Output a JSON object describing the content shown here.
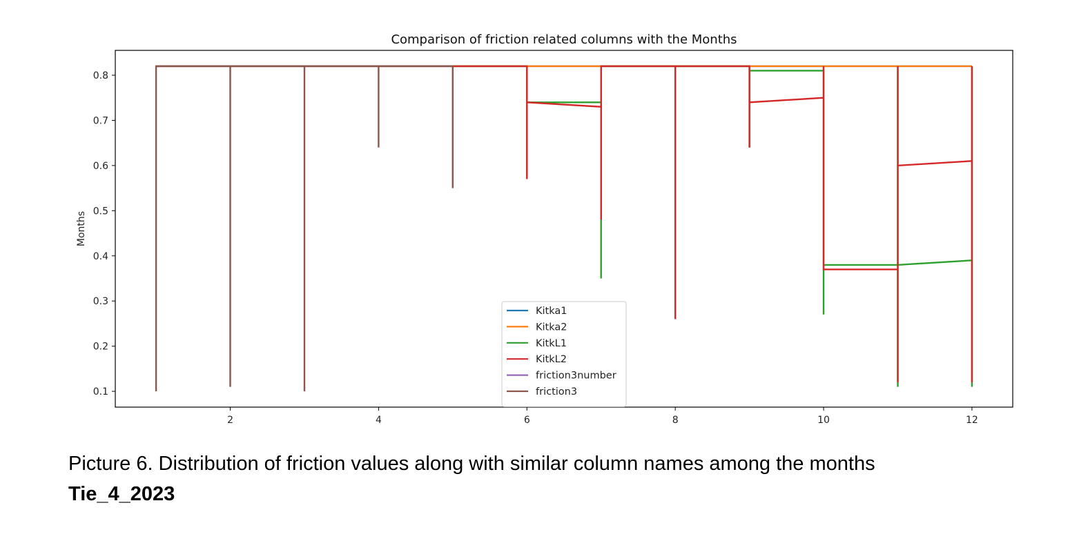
{
  "chart_data": {
    "type": "line",
    "title": "Comparison of friction related columns with the Months",
    "xlabel": "",
    "ylabel": "Months",
    "xlim": [
      0.45,
      12.55
    ],
    "ylim": [
      0.065,
      0.855
    ],
    "x_ticks": [
      2,
      4,
      6,
      8,
      10,
      12
    ],
    "y_ticks": [
      0.1,
      0.2,
      0.3,
      0.4,
      0.5,
      0.6,
      0.7,
      0.8
    ],
    "grid": false,
    "legend_position": "lower-center",
    "series": [
      {
        "name": "Kitka1",
        "color": "#1f77b4",
        "points": [
          [
            1,
            0.82
          ],
          [
            12,
            0.82
          ]
        ]
      },
      {
        "name": "Kitka2",
        "color": "#ff7f0e",
        "points": [
          [
            1,
            0.82
          ],
          [
            12,
            0.82
          ]
        ]
      },
      {
        "name": "KitkL1",
        "color": "#2ca02c",
        "points": [
          [
            5,
            0.82
          ],
          [
            6,
            0.82
          ],
          [
            6,
            0.57
          ],
          [
            6,
            0.74
          ],
          [
            7,
            0.74
          ],
          [
            7,
            0.35
          ],
          [
            7,
            0.82
          ],
          [
            8,
            0.82
          ],
          [
            8,
            0.26
          ],
          [
            8,
            0.82
          ],
          [
            9,
            0.82
          ],
          [
            9,
            0.64
          ],
          [
            9,
            0.81
          ],
          [
            10,
            0.81
          ],
          [
            10,
            0.27
          ],
          [
            10,
            0.82
          ],
          [
            10,
            0.38
          ],
          [
            11,
            0.38
          ],
          [
            11,
            0.11
          ],
          [
            11,
            0.82
          ],
          [
            11,
            0.38
          ],
          [
            12,
            0.39
          ],
          [
            12,
            0.11
          ],
          [
            12,
            0.82
          ]
        ]
      },
      {
        "name": "KitkL2",
        "color": "#d62728",
        "points": [
          [
            5,
            0.82
          ],
          [
            6,
            0.82
          ],
          [
            6,
            0.57
          ],
          [
            6,
            0.74
          ],
          [
            7,
            0.73
          ],
          [
            7,
            0.48
          ],
          [
            7,
            0.82
          ],
          [
            8,
            0.82
          ],
          [
            8,
            0.26
          ],
          [
            8,
            0.82
          ],
          [
            9,
            0.82
          ],
          [
            9,
            0.64
          ],
          [
            9,
            0.74
          ],
          [
            10,
            0.75
          ],
          [
            10,
            0.62
          ],
          [
            10,
            0.82
          ],
          [
            10,
            0.37
          ],
          [
            11,
            0.37
          ],
          [
            11,
            0.12
          ],
          [
            11,
            0.82
          ],
          [
            11,
            0.6
          ],
          [
            12,
            0.61
          ],
          [
            12,
            0.12
          ],
          [
            12,
            0.82
          ]
        ]
      },
      {
        "name": "friction3number",
        "color": "#9467bd",
        "points": [
          [
            1,
            0.82
          ],
          [
            5,
            0.82
          ]
        ]
      },
      {
        "name": "friction3",
        "color": "#8c564b",
        "points": [
          [
            1,
            0.1
          ],
          [
            1,
            0.82
          ],
          [
            2,
            0.82
          ],
          [
            2,
            0.11
          ],
          [
            2,
            0.82
          ],
          [
            3,
            0.82
          ],
          [
            3,
            0.1
          ],
          [
            3,
            0.82
          ],
          [
            4,
            0.82
          ],
          [
            4,
            0.64
          ],
          [
            4,
            0.82
          ],
          [
            5,
            0.82
          ],
          [
            5,
            0.55
          ],
          [
            5,
            0.82
          ]
        ]
      }
    ]
  },
  "caption": "Picture 6. Distribution of friction values along with similar column names among the months",
  "doc_id": "Tie_4_2023"
}
